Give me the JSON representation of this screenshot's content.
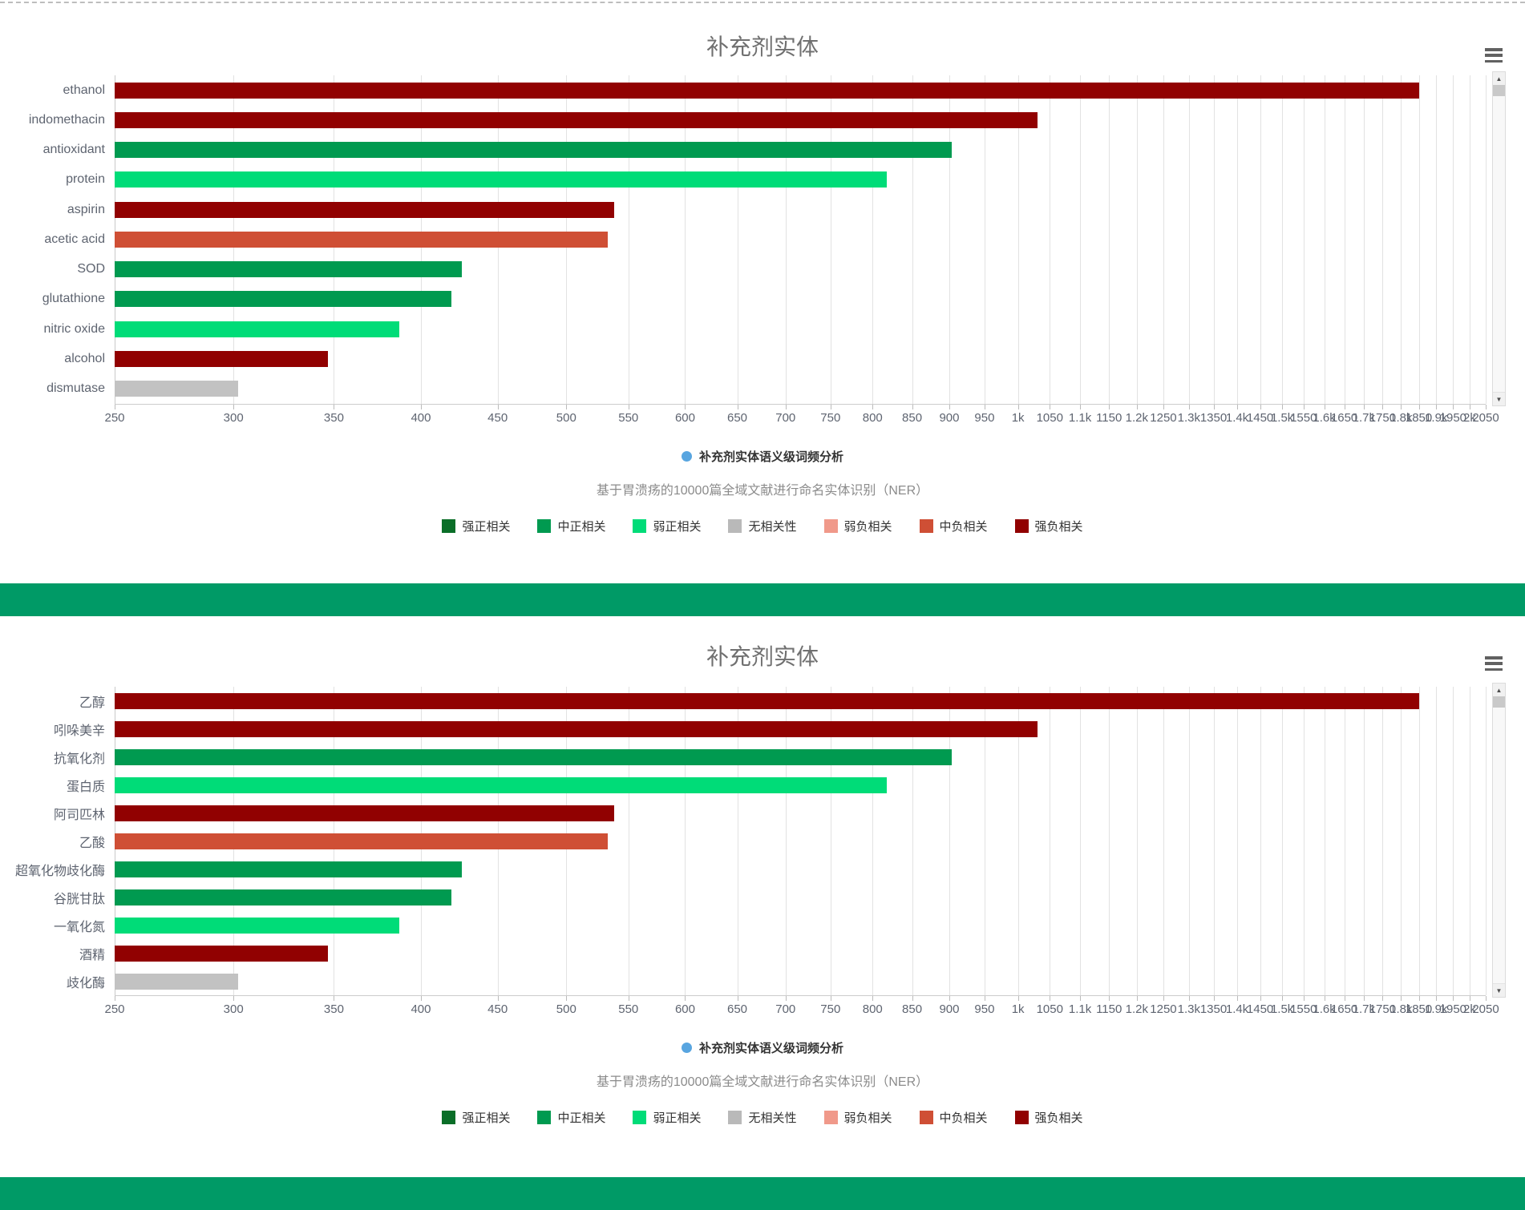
{
  "page": {
    "separator_color": "#009a66",
    "icons": {
      "toolbox": "hamburger-menu",
      "scroll_up_arrow": "▲",
      "scroll_down_arrow": "▼",
      "series_legend_marker": "circle-dot"
    },
    "series_legend_marker_color": "#58a5e0"
  },
  "chart_data": [
    {
      "type": "bar",
      "orientation": "horizontal",
      "title": "补充剂实体",
      "series_legend": "补充剂实体语义级词频分析",
      "subtitle": "基于胃溃疡的10000篇全域文献进行命名实体识别（NER）",
      "xaxis": {
        "scale": "log",
        "min": 250,
        "max": 2050,
        "tick_step": 50,
        "ticks": [
          {
            "v": 250,
            "label": "250"
          },
          {
            "v": 300,
            "label": "300"
          },
          {
            "v": 350,
            "label": "350"
          },
          {
            "v": 400,
            "label": "400"
          },
          {
            "v": 450,
            "label": "450"
          },
          {
            "v": 500,
            "label": "500"
          },
          {
            "v": 550,
            "label": "550"
          },
          {
            "v": 600,
            "label": "600"
          },
          {
            "v": 650,
            "label": "650"
          },
          {
            "v": 700,
            "label": "700"
          },
          {
            "v": 750,
            "label": "750"
          },
          {
            "v": 800,
            "label": "800"
          },
          {
            "v": 850,
            "label": "850"
          },
          {
            "v": 900,
            "label": "900"
          },
          {
            "v": 950,
            "label": "950"
          },
          {
            "v": 1000,
            "label": "1k"
          },
          {
            "v": 1050,
            "label": "1050"
          },
          {
            "v": 1100,
            "label": "1.1k"
          },
          {
            "v": 1150,
            "label": "1150"
          },
          {
            "v": 1200,
            "label": "1.2k"
          },
          {
            "v": 1250,
            "label": "1250"
          },
          {
            "v": 1300,
            "label": "1.3k"
          },
          {
            "v": 1350,
            "label": "1350"
          },
          {
            "v": 1400,
            "label": "1.4k"
          },
          {
            "v": 1450,
            "label": "1450"
          },
          {
            "v": 1500,
            "label": "1.5k"
          },
          {
            "v": 1550,
            "label": "1550"
          },
          {
            "v": 1600,
            "label": "1.6k"
          },
          {
            "v": 1650,
            "label": "1650"
          },
          {
            "v": 1700,
            "label": "1.7k"
          },
          {
            "v": 1750,
            "label": "1750"
          },
          {
            "v": 1800,
            "label": "1.8k"
          },
          {
            "v": 1850,
            "label": "1850"
          },
          {
            "v": 1900,
            "label": "1.9k"
          },
          {
            "v": 1950,
            "label": "1950"
          },
          {
            "v": 2000,
            "label": "2k"
          },
          {
            "v": 2050,
            "label": "2050"
          }
        ]
      },
      "categories": [
        "ethanol",
        "indomethacin",
        "antioxidant",
        "protein",
        "aspirin",
        "acetic acid",
        "SOD",
        "glutathione",
        "nitric oxide",
        "alcohol",
        "dismutase"
      ],
      "values": [
        1850,
        1030,
        903,
        818,
        538,
        533,
        426,
        419,
        387,
        347,
        302
      ],
      "bar_classes": [
        "强负相关",
        "强负相关",
        "中正相关",
        "弱正相关",
        "强负相关",
        "中负相关",
        "中正相关",
        "中正相关",
        "弱正相关",
        "强负相关",
        "无相关性"
      ],
      "bar_colors": [
        "#910101",
        "#910101",
        "#009a50",
        "#00dc78",
        "#910101",
        "#cf4f35",
        "#009a50",
        "#009a50",
        "#00dc78",
        "#910101",
        "#c2c2c2"
      ],
      "correlation_legend": [
        {
          "label": "强正相关",
          "color": "#0a6e28"
        },
        {
          "label": "中正相关",
          "color": "#009a50"
        },
        {
          "label": "弱正相关",
          "color": "#00dc78"
        },
        {
          "label": "无相关性",
          "color": "#b9b9b9"
        },
        {
          "label": "弱负相关",
          "color": "#f0998a"
        },
        {
          "label": "中负相关",
          "color": "#cf4f35"
        },
        {
          "label": "强负相关",
          "color": "#910101"
        }
      ]
    },
    {
      "type": "bar",
      "orientation": "horizontal",
      "title": "补充剂实体",
      "series_legend": "补充剂实体语义级词频分析",
      "subtitle": "基于胃溃疡的10000篇全域文献进行命名实体识别（NER）",
      "xaxis": {
        "scale": "log",
        "min": 250,
        "max": 2050,
        "tick_step": 50,
        "ticks": [
          {
            "v": 250,
            "label": "250"
          },
          {
            "v": 300,
            "label": "300"
          },
          {
            "v": 350,
            "label": "350"
          },
          {
            "v": 400,
            "label": "400"
          },
          {
            "v": 450,
            "label": "450"
          },
          {
            "v": 500,
            "label": "500"
          },
          {
            "v": 550,
            "label": "550"
          },
          {
            "v": 600,
            "label": "600"
          },
          {
            "v": 650,
            "label": "650"
          },
          {
            "v": 700,
            "label": "700"
          },
          {
            "v": 750,
            "label": "750"
          },
          {
            "v": 800,
            "label": "800"
          },
          {
            "v": 850,
            "label": "850"
          },
          {
            "v": 900,
            "label": "900"
          },
          {
            "v": 950,
            "label": "950"
          },
          {
            "v": 1000,
            "label": "1k"
          },
          {
            "v": 1050,
            "label": "1050"
          },
          {
            "v": 1100,
            "label": "1.1k"
          },
          {
            "v": 1150,
            "label": "1150"
          },
          {
            "v": 1200,
            "label": "1.2k"
          },
          {
            "v": 1250,
            "label": "1250"
          },
          {
            "v": 1300,
            "label": "1.3k"
          },
          {
            "v": 1350,
            "label": "1350"
          },
          {
            "v": 1400,
            "label": "1.4k"
          },
          {
            "v": 1450,
            "label": "1450"
          },
          {
            "v": 1500,
            "label": "1.5k"
          },
          {
            "v": 1550,
            "label": "1550"
          },
          {
            "v": 1600,
            "label": "1.6k"
          },
          {
            "v": 1650,
            "label": "1650"
          },
          {
            "v": 1700,
            "label": "1.7k"
          },
          {
            "v": 1750,
            "label": "1750"
          },
          {
            "v": 1800,
            "label": "1.8k"
          },
          {
            "v": 1850,
            "label": "1850"
          },
          {
            "v": 1900,
            "label": "1.9k"
          },
          {
            "v": 1950,
            "label": "1950"
          },
          {
            "v": 2000,
            "label": "2k"
          },
          {
            "v": 2050,
            "label": "2050"
          }
        ]
      },
      "categories": [
        "乙醇",
        "吲哚美辛",
        "抗氧化剂",
        "蛋白质",
        "阿司匹林",
        "乙酸",
        "超氧化物歧化酶",
        "谷胱甘肽",
        "一氧化氮",
        "酒精",
        "歧化酶"
      ],
      "values": [
        1850,
        1030,
        903,
        818,
        538,
        533,
        426,
        419,
        387,
        347,
        302
      ],
      "bar_classes": [
        "强负相关",
        "强负相关",
        "中正相关",
        "弱正相关",
        "强负相关",
        "中负相关",
        "中正相关",
        "中正相关",
        "弱正相关",
        "强负相关",
        "无相关性"
      ],
      "bar_colors": [
        "#910101",
        "#910101",
        "#009a50",
        "#00dc78",
        "#910101",
        "#cf4f35",
        "#009a50",
        "#009a50",
        "#00dc78",
        "#910101",
        "#c2c2c2"
      ],
      "correlation_legend": [
        {
          "label": "强正相关",
          "color": "#0a6e28"
        },
        {
          "label": "中正相关",
          "color": "#009a50"
        },
        {
          "label": "弱正相关",
          "color": "#00dc78"
        },
        {
          "label": "无相关性",
          "color": "#b9b9b9"
        },
        {
          "label": "弱负相关",
          "color": "#f0998a"
        },
        {
          "label": "中负相关",
          "color": "#cf4f35"
        },
        {
          "label": "强负相关",
          "color": "#910101"
        }
      ]
    }
  ]
}
